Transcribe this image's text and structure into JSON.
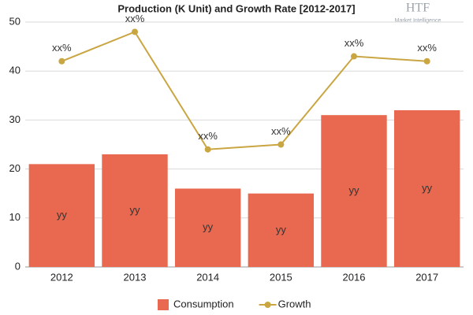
{
  "chart_data": {
    "type": "combo",
    "title": "Production (K Unit) and Growth Rate [2012-2017]",
    "watermark": {
      "name": "HTF",
      "tagline": "Market Intelligence"
    },
    "categories": [
      "2012",
      "2013",
      "2014",
      "2015",
      "2016",
      "2017"
    ],
    "series": [
      {
        "name": "Consumption",
        "type": "bar",
        "color": "#e8694f",
        "values": [
          21,
          23,
          16,
          15,
          31,
          32
        ],
        "value_labels": [
          "yy",
          "yy",
          "yy",
          "yy",
          "yy",
          "yy"
        ]
      },
      {
        "name": "Growth",
        "type": "line",
        "color": "#c9a642",
        "values": [
          42,
          48,
          24,
          25,
          43,
          42
        ],
        "value_labels": [
          "xx%",
          "xx%",
          "xx%",
          "xx%",
          "xx%",
          "xx%"
        ]
      }
    ],
    "ylim": [
      0,
      50
    ],
    "yticks": [
      0,
      10,
      20,
      30,
      40,
      50
    ],
    "grid": true,
    "legend": "bottom"
  }
}
